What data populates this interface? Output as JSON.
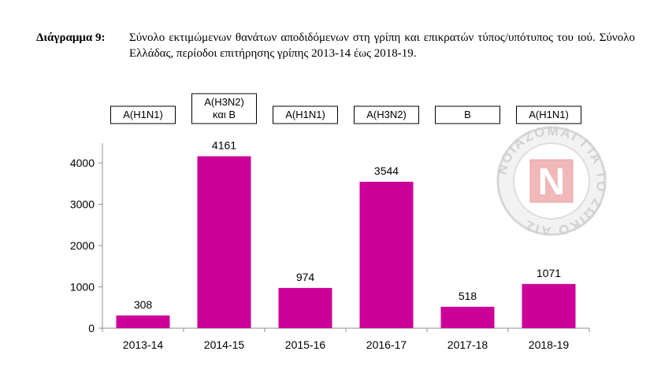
{
  "caption": {
    "label": "Διάγραμμα 9:",
    "text": "Σύνολο εκτιμώμενων θανάτων αποδιδόμενων στη γρίπη και επικρατών τύπος/υπότυπος του ιού. Σύνολο Ελλάδας, περίοδοι επιτήρησης γρίπης 2013-14 έως 2018-19."
  },
  "watermark": {
    "text": "ΝΟΙΑΖΟΜΑΙ ΓΙΑ ΤΟ ΖΩΙΚΟ ΑΙΣ",
    "letter": "N"
  },
  "chart_data": {
    "type": "bar",
    "categories": [
      "2013-14",
      "2014-15",
      "2015-16",
      "2016-17",
      "2017-18",
      "2018-19"
    ],
    "values": [
      308,
      4161,
      974,
      3544,
      518,
      1071
    ],
    "strain_labels": [
      [
        "A(H1N1)"
      ],
      [
        "A(H3N2)",
        "και B"
      ],
      [
        "A(H1N1)"
      ],
      [
        "A(H3N2)"
      ],
      [
        "B"
      ],
      [
        "A(H1N1)"
      ]
    ],
    "yticks": [
      0,
      1000,
      2000,
      3000,
      4000
    ],
    "ylim": [
      0,
      4600
    ],
    "bar_color": "#cc0099",
    "grid": false,
    "legend": "none"
  }
}
